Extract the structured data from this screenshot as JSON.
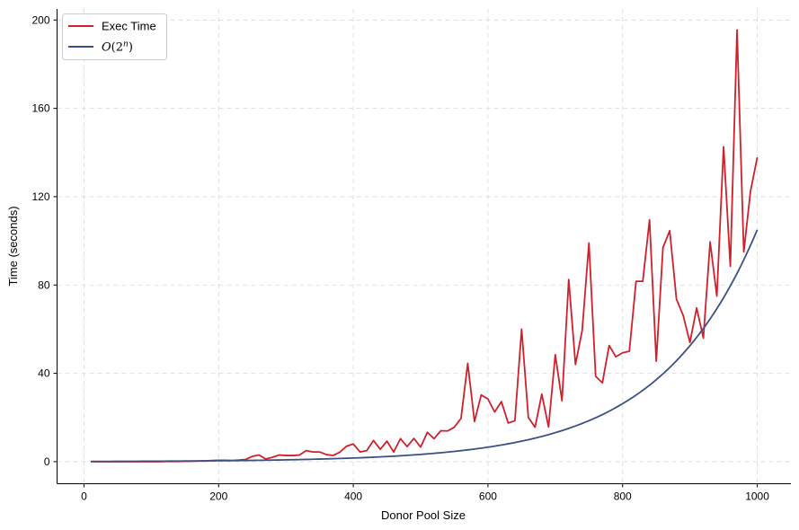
{
  "chart_data": {
    "type": "line",
    "xlabel": "Donor Pool Size",
    "ylabel": "Time (seconds)",
    "xlim": [
      -40,
      1050
    ],
    "ylim": [
      -10,
      205
    ],
    "xticks": [
      0,
      200,
      400,
      600,
      800,
      1000
    ],
    "yticks": [
      0,
      40,
      80,
      120,
      160,
      200
    ],
    "grid": true,
    "legend_position": "top-left",
    "series": [
      {
        "name": "Exec Time",
        "color": "#d0202c",
        "x": [
          10,
          20,
          30,
          40,
          50,
          60,
          70,
          80,
          90,
          100,
          110,
          120,
          130,
          140,
          150,
          160,
          170,
          180,
          190,
          200,
          210,
          220,
          230,
          240,
          250,
          260,
          270,
          280,
          290,
          300,
          310,
          320,
          330,
          340,
          350,
          360,
          370,
          380,
          390,
          400,
          410,
          420,
          430,
          440,
          450,
          460,
          470,
          480,
          490,
          500,
          510,
          520,
          530,
          540,
          550,
          560,
          570,
          580,
          590,
          600,
          610,
          620,
          630,
          640,
          650,
          660,
          670,
          680,
          690,
          700,
          710,
          720,
          730,
          740,
          750,
          760,
          770,
          780,
          790,
          800,
          810,
          820,
          830,
          840,
          850,
          860,
          870,
          880,
          890,
          900,
          910,
          920,
          930,
          940,
          950,
          960,
          970,
          980,
          990,
          1000
        ],
        "y": [
          0,
          0,
          0,
          0,
          0,
          0,
          0,
          0,
          0,
          0,
          0,
          0.1,
          0.1,
          0.1,
          0.2,
          0.2,
          0.3,
          0.3,
          0.5,
          0.6,
          0.6,
          0.5,
          0.7,
          1.0,
          2.4,
          3.0,
          1.2,
          2.0,
          3.0,
          2.8,
          2.8,
          3.0,
          5.0,
          4.4,
          4.4,
          3.2,
          2.8,
          4.3,
          7.0,
          8.0,
          4.4,
          5.0,
          9.6,
          5.6,
          9.3,
          4.4,
          10.4,
          6.8,
          10.5,
          6.6,
          13.3,
          10.4,
          14.0,
          13.9,
          15.6,
          19.6,
          44.5,
          18.2,
          30.2,
          28.4,
          22.5,
          27.2,
          17.5,
          18.5,
          60.0,
          20.0,
          15.6,
          30.6,
          15.7,
          48.4,
          27.6,
          82.5,
          44.0,
          59.5,
          99.0,
          38.6,
          35.7,
          52.6,
          47.5,
          49.3,
          50.0,
          81.7,
          81.7,
          109.5,
          45.5,
          97.0,
          104.6,
          73.6,
          66.2,
          54.0,
          69.6,
          56.0,
          99.5,
          75.0,
          142.6,
          88.5,
          195.5,
          95.0,
          122.5,
          137.8
        ]
      },
      {
        "name": "O(2^n)",
        "color": "#3b5185",
        "formula": "y = 105.0 * 2^((x - 1000) / 100)",
        "x_range": [
          10,
          1000
        ]
      }
    ]
  }
}
